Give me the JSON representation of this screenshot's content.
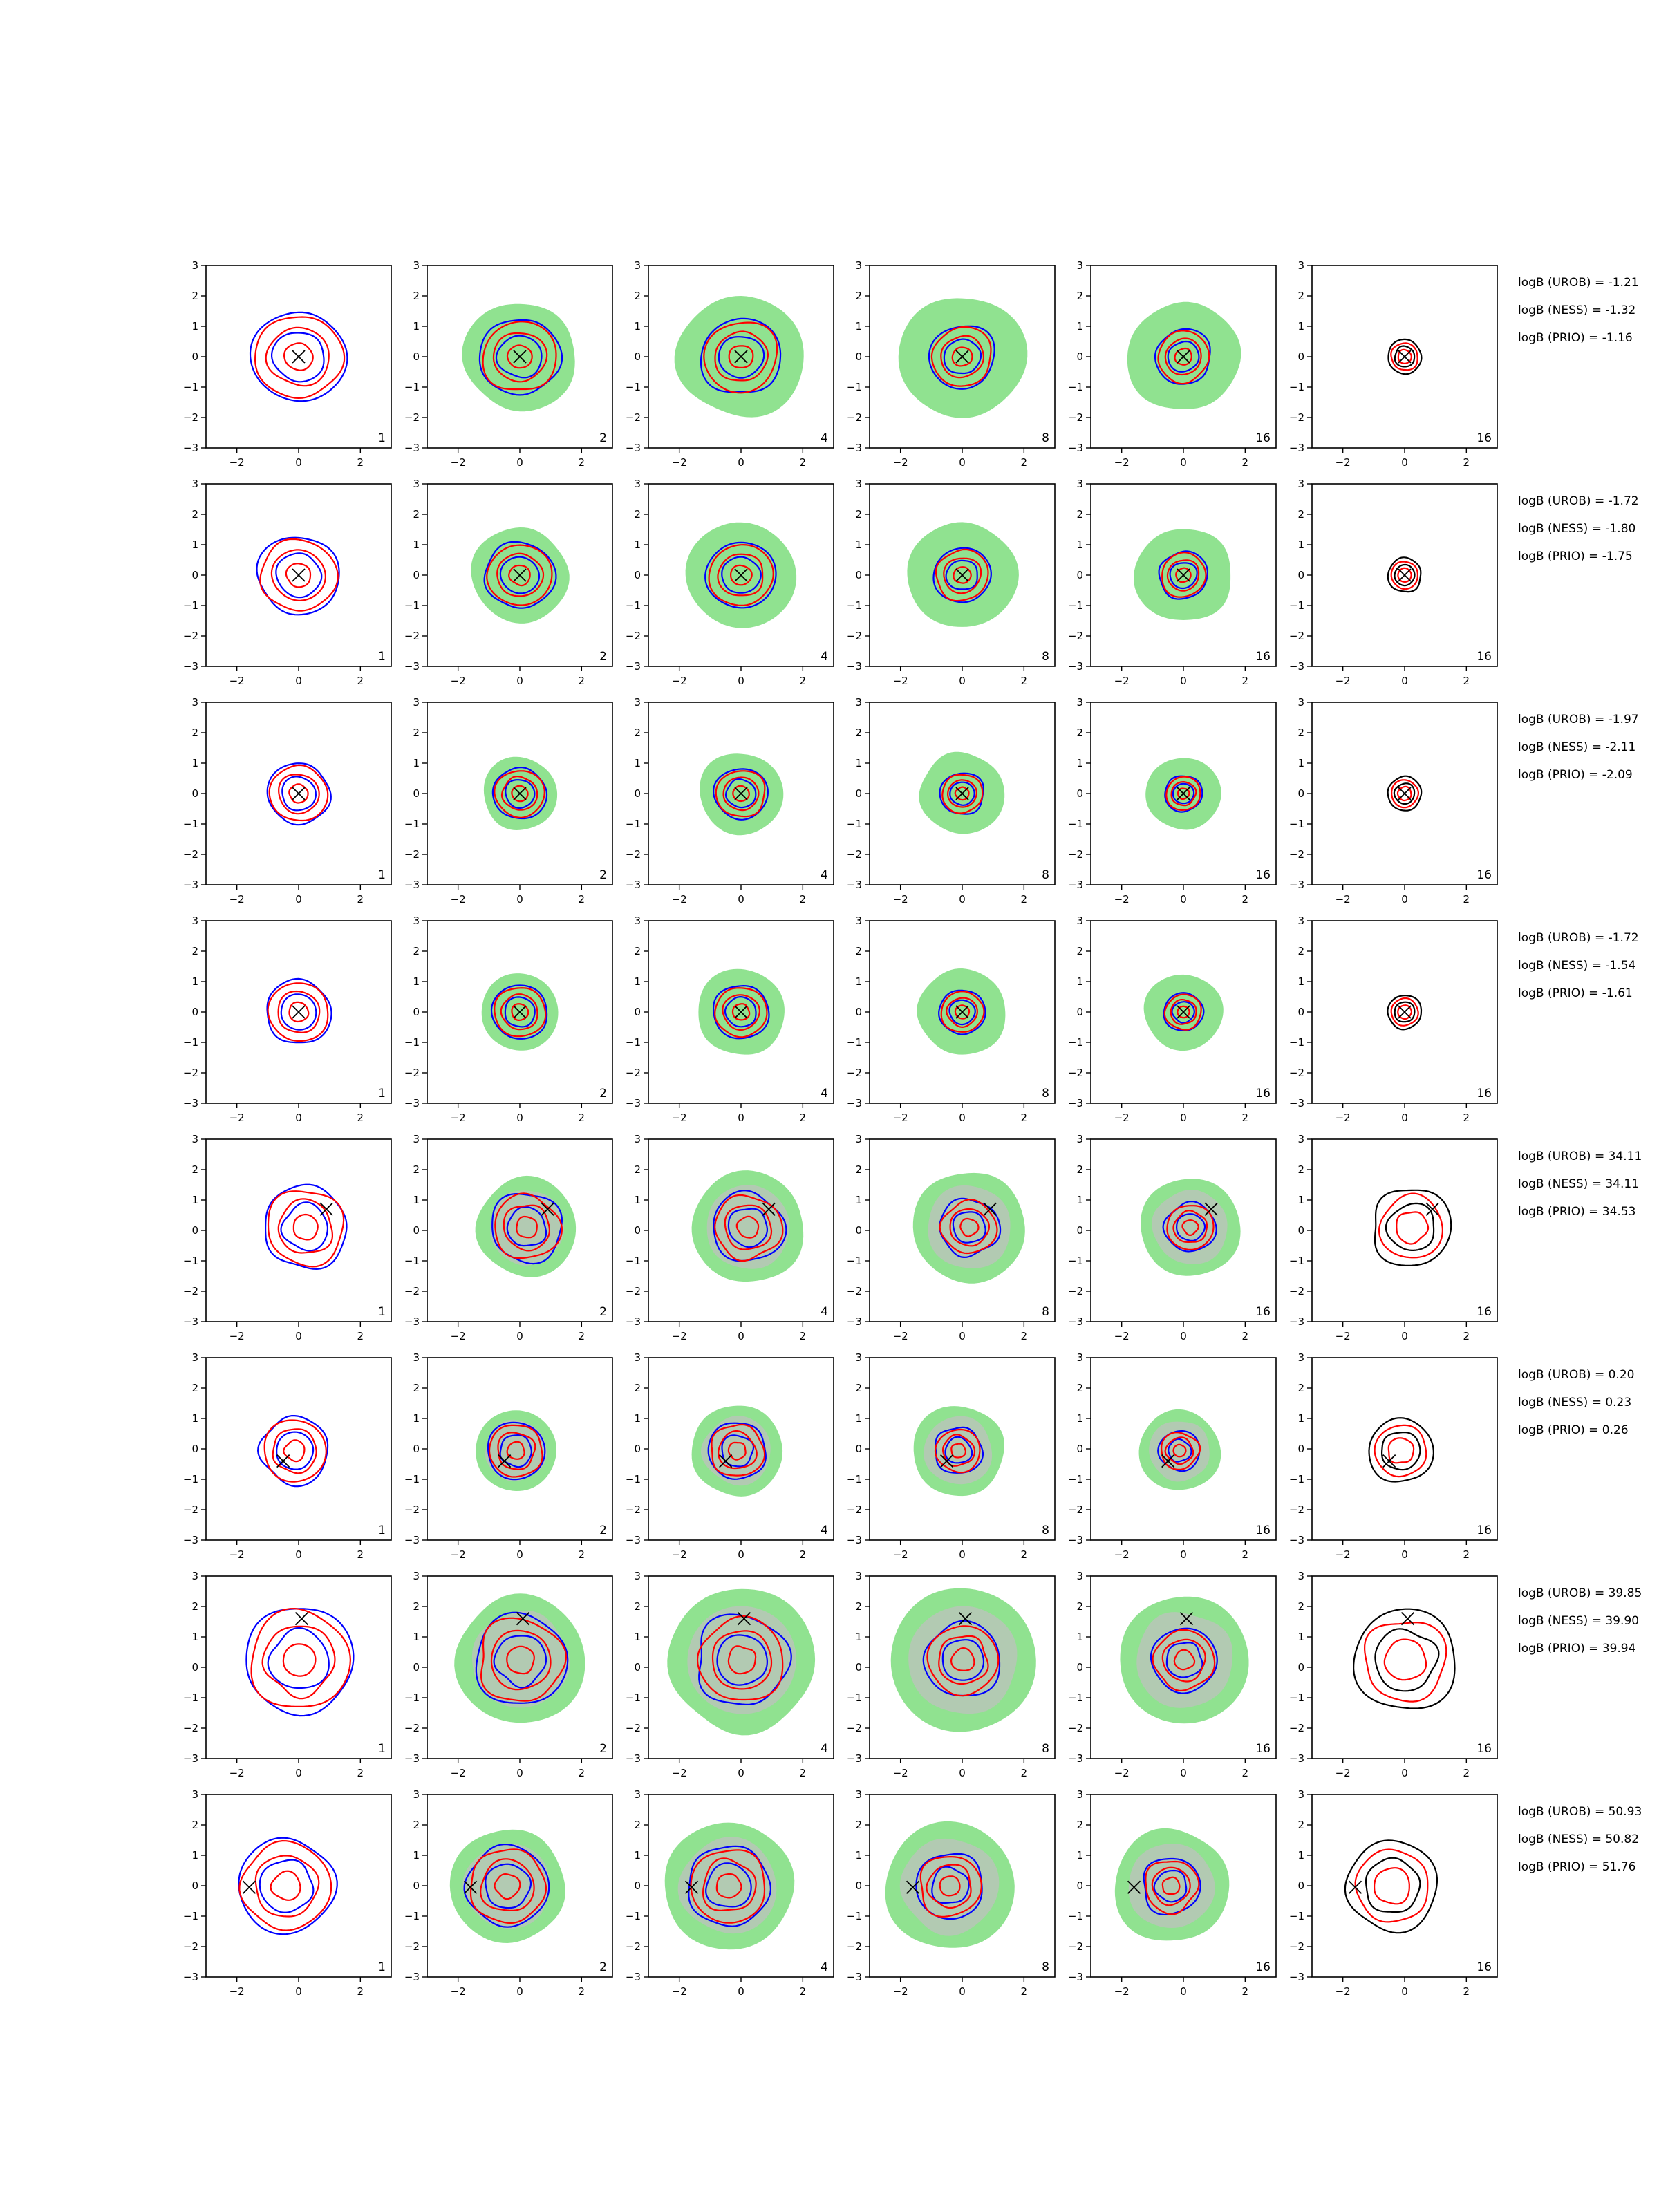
{
  "chart_data": {
    "type": "contour-grid",
    "rows": 8,
    "cols": 6,
    "xlim": [
      -3,
      3
    ],
    "ylim": [
      -3,
      3
    ],
    "xticks": [
      -2,
      0,
      2
    ],
    "yticks": [
      3,
      2,
      1,
      0,
      -1,
      -2,
      -3
    ],
    "xtick_labels": [
      "−2",
      "0",
      "2"
    ],
    "ytick_labels": [
      "3",
      "2",
      "1",
      "0",
      "−1",
      "−2",
      "−3"
    ],
    "column_labels": [
      "1",
      "2",
      "4",
      "8",
      "16",
      "16"
    ],
    "colors": {
      "blue": "#0000ff",
      "red": "#ff0000",
      "black": "#000000",
      "green_fill": "#90e290",
      "gray_fill": "#c0c0c0"
    },
    "row_markers": [
      [
        0,
        0
      ],
      [
        0,
        0
      ],
      [
        0,
        0
      ],
      [
        0,
        0
      ],
      [
        0.9,
        0.7
      ],
      [
        -0.5,
        -0.4
      ],
      [
        0.1,
        1.6
      ],
      [
        -1.6,
        -0.05
      ]
    ],
    "row_scales": [
      1.5,
      1.3,
      1.0,
      1.05,
      1.35,
      1.1,
      1.75,
      1.55
    ],
    "logb": [
      [
        "logB (UROB) = -1.21",
        "logB (NESS) = -1.32",
        "logB (PRIO) = -1.16"
      ],
      [
        "logB (UROB) = -1.72",
        "logB (NESS) = -1.80",
        "logB (PRIO) = -1.75"
      ],
      [
        "logB (UROB) = -1.97",
        "logB (NESS) = -2.11",
        "logB (PRIO) = -2.09"
      ],
      [
        "logB (UROB) = -1.72",
        "logB (NESS) = -1.54",
        "logB (PRIO) = -1.61"
      ],
      [
        "logB (UROB) = 34.11",
        "logB (NESS) = 34.11",
        "logB (PRIO) = 34.53"
      ],
      [
        "logB (UROB) = 0.20",
        "logB (NESS) = 0.23",
        "logB (PRIO) = 0.26"
      ],
      [
        "logB (UROB) = 39.85",
        "logB (NESS) = 39.90",
        "logB (PRIO) = 39.94"
      ],
      [
        "logB (UROB) = 50.93",
        "logB (NESS) = 50.82",
        "logB (PRIO) = 51.76"
      ]
    ]
  }
}
